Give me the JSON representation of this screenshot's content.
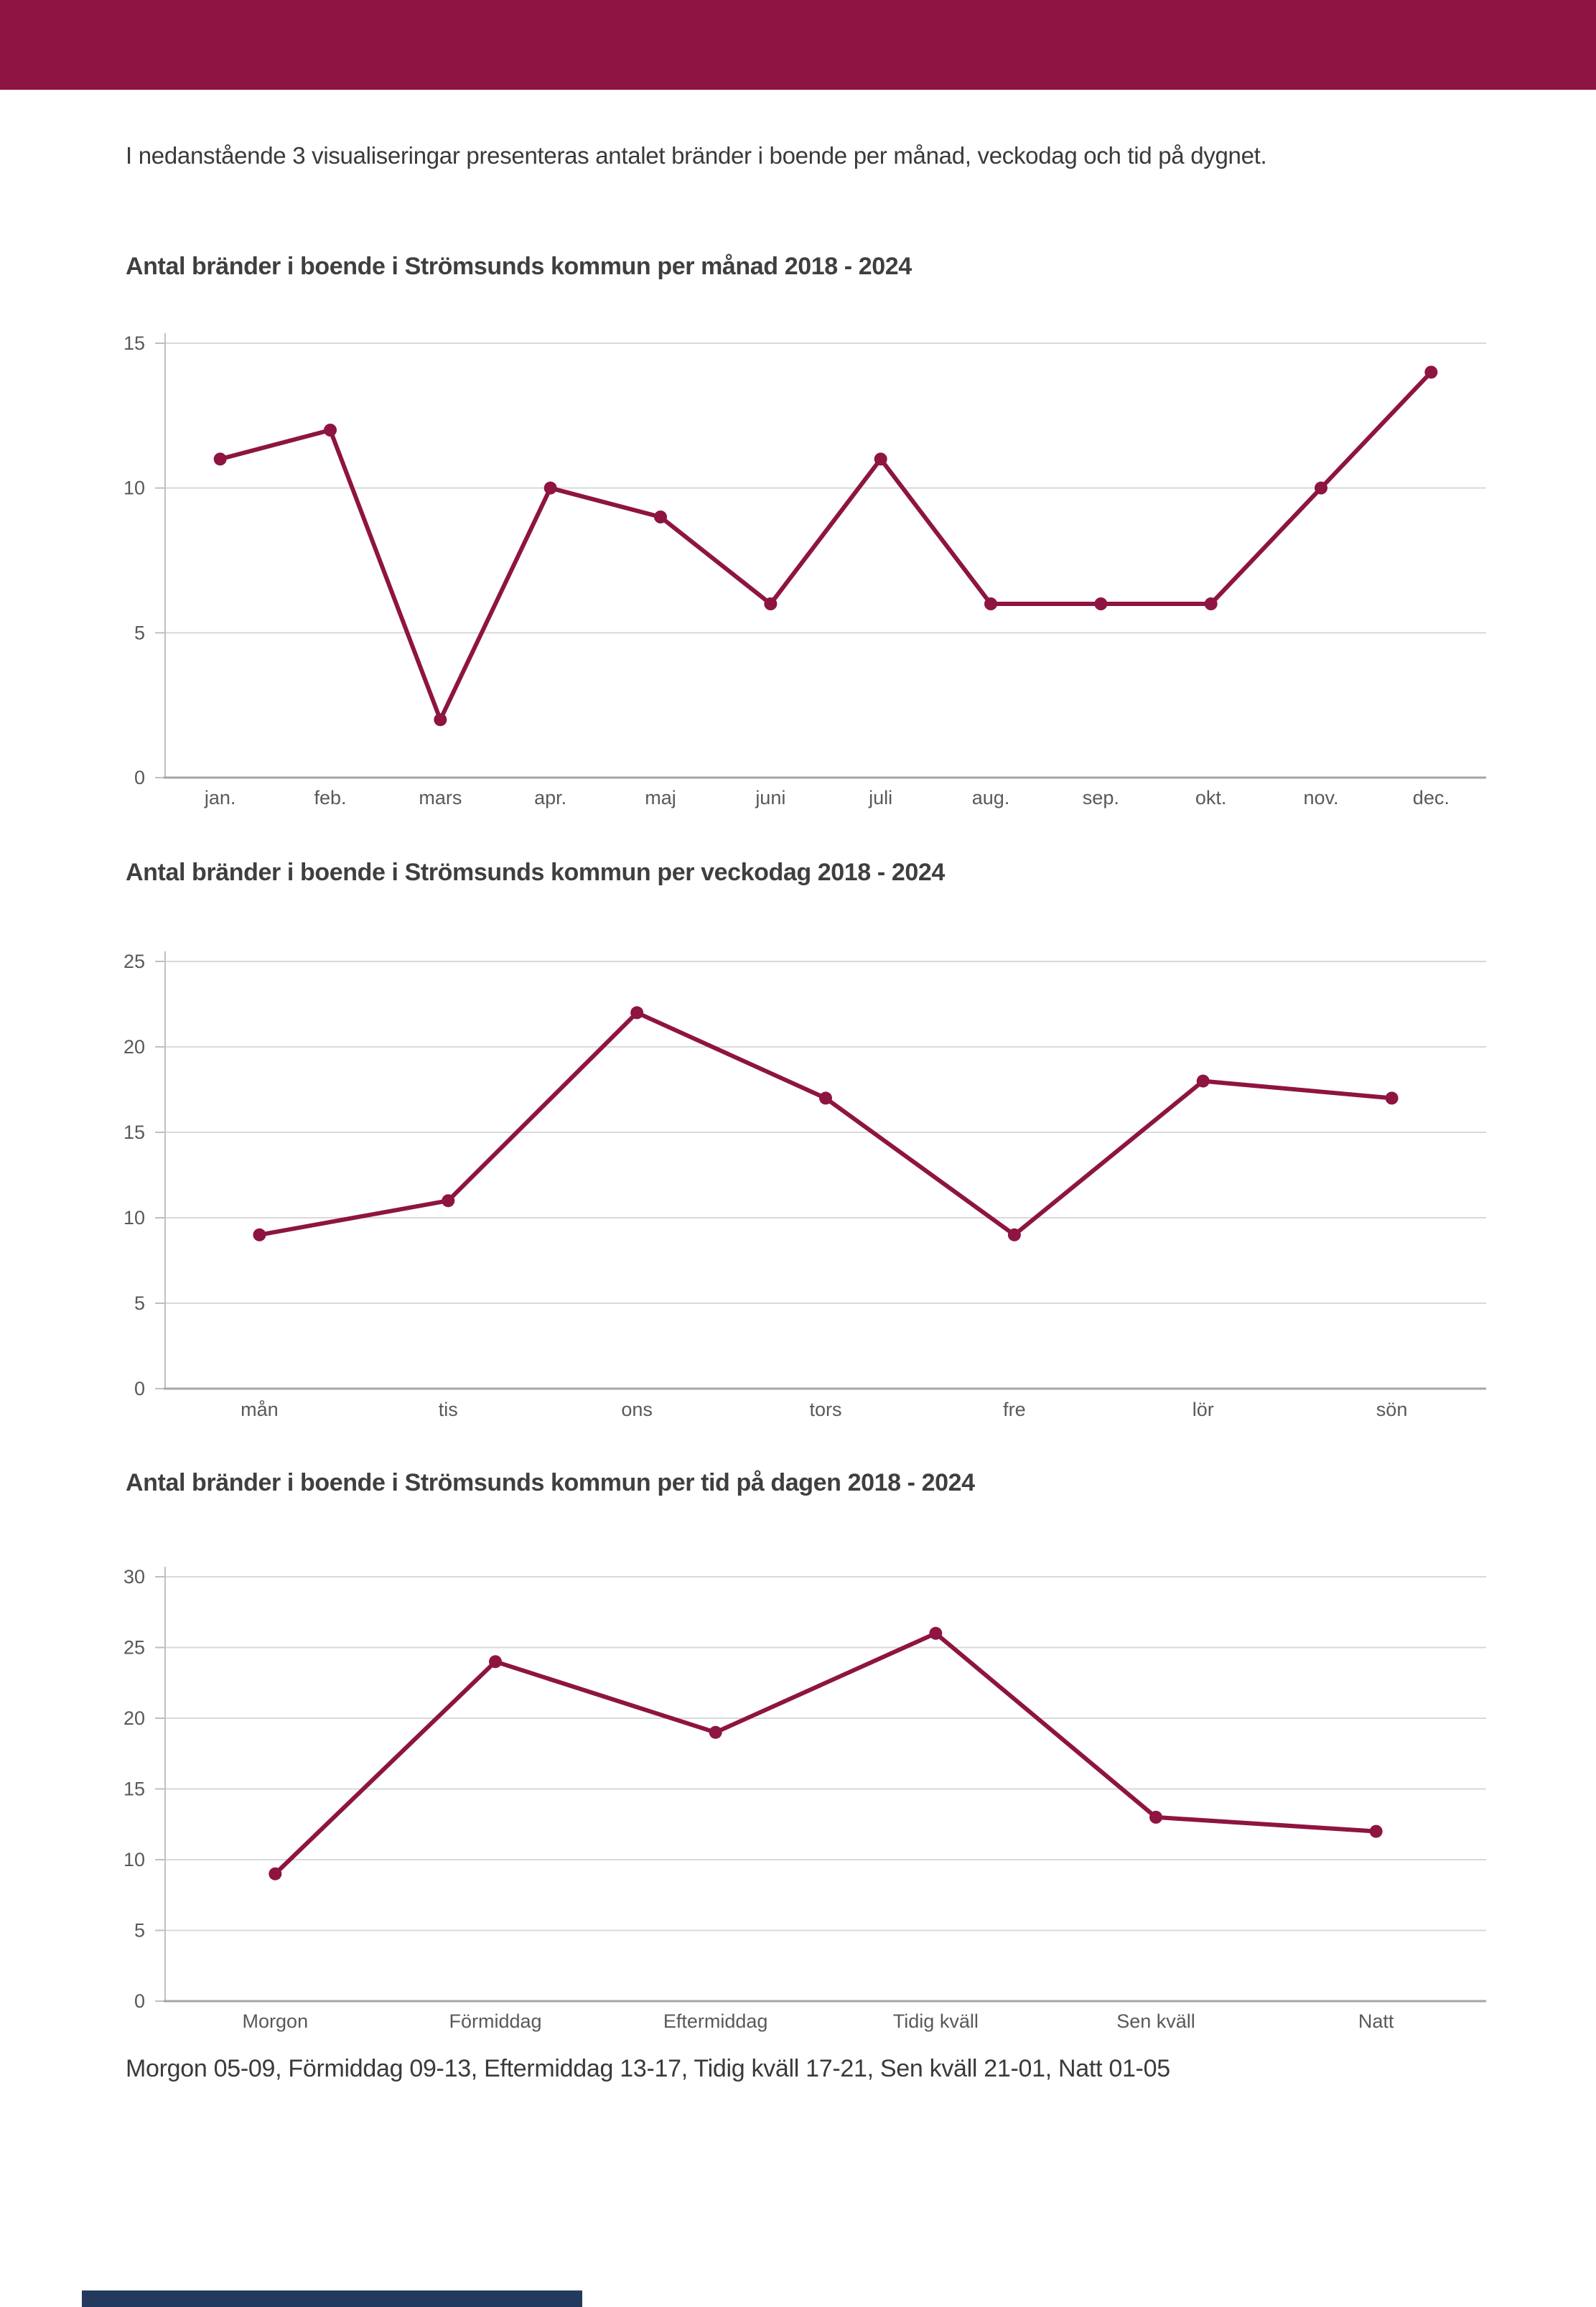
{
  "page": {
    "intro": "I nedanstående 3 visualiseringar presenteras antalet bränder i boende per månad, veckodag och tid på dygnet.",
    "footnote": "Morgon 05-09, Förmiddag 09-13, Eftermiddag 13-17, Tidig kväll 17-21, Sen kväll 21-01, Natt 01-05"
  },
  "colors": {
    "top_bar": "#8E1441",
    "bottom_bar": "#24395E",
    "line": "#8E1441",
    "grid": "#D9D9D9",
    "axis": "#BFBFBF",
    "baseline": "#A6A6A6",
    "tick_text": "#595959",
    "title_text": "#3F3F3F",
    "body_text": "#3A3A3A"
  },
  "chart_data": [
    {
      "type": "line",
      "title": "Antal bränder i boende i Strömsunds kommun per månad 2018 - 2024",
      "categories": [
        "jan.",
        "feb.",
        "mars",
        "apr.",
        "maj",
        "juni",
        "juli",
        "aug.",
        "sep.",
        "okt.",
        "nov.",
        "dec."
      ],
      "values": [
        11,
        12,
        2,
        10,
        9,
        6,
        11,
        6,
        6,
        6,
        10,
        14
      ],
      "xlabel": "",
      "ylabel": "",
      "ylim": [
        0,
        15
      ],
      "ytick_step": 5,
      "grid": true,
      "legend": false
    },
    {
      "type": "line",
      "title": "Antal bränder i boende i Strömsunds kommun per veckodag 2018 - 2024",
      "categories": [
        "mån",
        "tis",
        "ons",
        "tors",
        "fre",
        "lör",
        "sön"
      ],
      "values": [
        9,
        11,
        22,
        17,
        9,
        18,
        17
      ],
      "xlabel": "",
      "ylabel": "",
      "ylim": [
        0,
        25
      ],
      "ytick_step": 5,
      "grid": true,
      "legend": false
    },
    {
      "type": "line",
      "title": "Antal bränder i boende i Strömsunds kommun per tid på dagen 2018 - 2024",
      "categories": [
        "Morgon",
        "Förmiddag",
        "Eftermiddag",
        "Tidig kväll",
        "Sen kväll",
        "Natt"
      ],
      "values": [
        9,
        24,
        19,
        26,
        13,
        12
      ],
      "xlabel": "",
      "ylabel": "",
      "ylim": [
        0,
        30
      ],
      "ytick_step": 5,
      "grid": true,
      "legend": false
    }
  ]
}
